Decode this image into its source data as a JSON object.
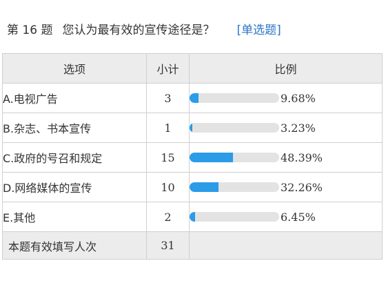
{
  "question": {
    "number": "第 16 题",
    "text": "您认为最有效的宣传途径是？",
    "type": "[单选题]"
  },
  "table": {
    "headers": {
      "option": "选项",
      "count": "小计",
      "ratio": "比例"
    },
    "rows": [
      {
        "option": "A.电视广告",
        "count": "3",
        "percent_label": "9.68%",
        "percent": 9.68
      },
      {
        "option": "B.杂志、书本宣传",
        "count": "1",
        "percent_label": "3.23%",
        "percent": 3.23
      },
      {
        "option": "C.政府的号召和规定",
        "count": "15",
        "percent_label": "48.39%",
        "percent": 48.39
      },
      {
        "option": "D.网络媒体的宣传",
        "count": "10",
        "percent_label": "32.26%",
        "percent": 32.26
      },
      {
        "option": "E.其他",
        "count": "2",
        "percent_label": "6.45%",
        "percent": 6.45
      }
    ],
    "footer": {
      "label": "本题有效填写人次",
      "count": "31"
    }
  },
  "colors": {
    "bar_fill": "#2a9ce8",
    "bar_track": "#e3e3e3",
    "header_bg": "#ececec",
    "question_type": "#2b73c8"
  }
}
